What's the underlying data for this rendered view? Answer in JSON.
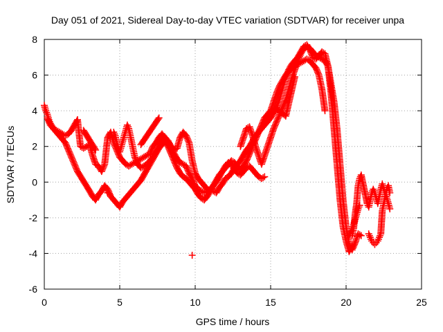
{
  "chart_data": {
    "type": "scatter",
    "title": "Day 051 of 2021, Sidereal Day-to-day VTEC variation (SDTVAR) for receiver unpa",
    "xlabel": "GPS time / hours",
    "ylabel": "SDTVAR / TECUs",
    "xlim": [
      0,
      25
    ],
    "ylim": [
      -6,
      8
    ],
    "xticks": [
      0,
      5,
      10,
      15,
      20,
      25
    ],
    "yticks": [
      -6,
      -4,
      -2,
      0,
      2,
      4,
      6,
      8
    ],
    "xtick_labels": [
      "0",
      "5",
      "10",
      "15",
      "20",
      "25"
    ],
    "ytick_labels": [
      "-6",
      "-4",
      "-2",
      "0",
      "2",
      "4",
      "6",
      "8"
    ],
    "grid": true,
    "marker": "+",
    "series": [
      {
        "name": "trace-a",
        "color": "#ff0000",
        "x": [
          0.0,
          0.1,
          0.2,
          0.3,
          0.4,
          0.6,
          0.8,
          1.0,
          1.2,
          1.4,
          1.6,
          1.8,
          2.0,
          2.2,
          2.4,
          2.6,
          2.8,
          3.0,
          3.2,
          3.4,
          3.6,
          3.8,
          4.0,
          4.2,
          4.4,
          4.6,
          4.8,
          5.0,
          5.2,
          5.4,
          5.6,
          5.8,
          6.0,
          6.2,
          6.4,
          6.6,
          6.8,
          7.0,
          7.2,
          7.4,
          7.6,
          7.8,
          8.0,
          8.2,
          8.4,
          8.6,
          8.8,
          9.0,
          9.2,
          9.4,
          9.6,
          9.8,
          10.0,
          10.2,
          10.4,
          10.6,
          10.8,
          11.0,
          11.2,
          11.4,
          11.6,
          11.8,
          12.0,
          12.2,
          12.4,
          12.6,
          12.8,
          13.0,
          13.2,
          13.4,
          13.6,
          13.8,
          14.0,
          14.2,
          14.4,
          14.6,
          14.8,
          15.0,
          15.2,
          15.4,
          15.6,
          15.8,
          16.0,
          16.2,
          16.4,
          16.6,
          16.8,
          17.0,
          17.2,
          17.4,
          17.6,
          17.8,
          18.0,
          18.2,
          18.4,
          18.6,
          18.8,
          19.0,
          19.2,
          19.4,
          19.6,
          19.8,
          20.0,
          20.2,
          20.4,
          20.6,
          20.8,
          21.0
        ],
        "y": [
          4.3,
          4.0,
          3.8,
          3.5,
          3.3,
          3.0,
          2.9,
          2.8,
          2.7,
          2.6,
          2.7,
          2.9,
          3.2,
          3.5,
          2.0,
          1.9,
          2.0,
          2.1,
          1.5,
          1.0,
          0.9,
          0.6,
          1.0,
          2.5,
          2.8,
          2.2,
          1.8,
          1.4,
          1.2,
          1.0,
          0.9,
          1.0,
          1.1,
          1.2,
          1.3,
          1.4,
          1.5,
          1.6,
          2.0,
          2.2,
          2.5,
          2.7,
          2.5,
          2.3,
          2.0,
          1.8,
          1.9,
          2.5,
          2.8,
          2.6,
          2.2,
          1.2,
          0.5,
          0.2,
          0.0,
          -0.2,
          -0.4,
          -0.5,
          -0.5,
          -0.6,
          -0.3,
          -0.1,
          0.2,
          0.3,
          0.5,
          0.8,
          1.0,
          1.2,
          1.5,
          1.8,
          2.0,
          2.3,
          2.6,
          2.8,
          3.0,
          3.2,
          3.4,
          3.6,
          3.9,
          4.2,
          4.7,
          5.3,
          5.9,
          6.3,
          6.6,
          6.8,
          7.0,
          7.3,
          7.6,
          7.7,
          7.4,
          7.0,
          6.9,
          7.1,
          7.3,
          7.2,
          6.5,
          5.5,
          4.5,
          3.0,
          1.0,
          -1.0,
          -2.5,
          -3.5,
          -3.8,
          -3.4,
          -2.9,
          -3.0
        ],
        "marker_size": 5
      },
      {
        "name": "trace-b",
        "color": "#ff0000",
        "x": [
          0.2,
          0.4,
          0.6,
          0.8,
          1.0,
          1.2,
          1.4,
          1.6,
          1.8,
          2.0,
          2.2,
          3.0,
          3.2,
          3.4,
          3.6,
          3.8,
          4.0,
          4.2,
          4.4,
          4.6,
          4.8,
          5.0,
          5.2,
          5.4,
          5.6,
          5.8,
          6.0,
          6.2,
          6.4,
          6.6,
          6.8,
          7.0,
          7.2,
          7.4,
          7.6,
          7.8,
          8.0,
          8.2,
          8.4,
          8.6,
          8.8,
          9.0,
          9.2,
          9.4,
          9.6,
          9.8,
          10.0,
          10.2,
          10.4,
          10.6,
          10.8,
          11.0,
          11.2,
          11.4,
          11.6,
          11.8,
          12.0,
          12.2,
          12.4,
          12.6,
          12.8,
          13.0,
          13.2,
          13.4,
          13.6,
          13.8,
          14.0,
          14.2,
          14.4,
          14.6,
          14.8,
          15.0,
          15.2,
          15.4,
          15.6,
          15.8,
          16.0,
          16.2,
          16.4,
          16.6,
          16.8,
          17.0,
          17.2,
          17.4,
          17.6,
          17.8,
          18.0,
          18.2,
          18.4,
          18.6
        ],
        "y": [
          3.6,
          3.2,
          3.0,
          2.8,
          2.6,
          2.4,
          2.2,
          1.8,
          1.4,
          1.0,
          0.6,
          -0.5,
          -0.8,
          -1.0,
          -0.7,
          -0.5,
          -0.2,
          -0.4,
          -0.8,
          -1.0,
          -1.2,
          -1.4,
          -1.1,
          -0.9,
          -0.7,
          -0.5,
          -0.3,
          -0.1,
          0.1,
          0.4,
          0.7,
          1.0,
          1.3,
          1.6,
          1.9,
          2.1,
          2.3,
          2.0,
          1.6,
          1.2,
          0.8,
          0.5,
          0.3,
          0.2,
          0.0,
          -0.2,
          -0.4,
          -0.7,
          -0.9,
          -1.0,
          -0.8,
          -0.5,
          -0.2,
          0.1,
          0.4,
          0.6,
          0.8,
          1.0,
          1.2,
          1.1,
          0.9,
          0.7,
          0.9,
          1.2,
          1.6,
          2.0,
          2.4,
          2.8,
          3.2,
          3.6,
          3.8,
          4.0,
          4.5,
          5.0,
          5.4,
          5.7,
          6.0,
          6.2,
          6.4,
          6.5,
          6.6,
          6.7,
          6.8,
          6.9,
          6.8,
          6.6,
          6.4,
          6.0,
          5.2,
          4.0
        ],
        "marker_size": 5
      },
      {
        "name": "trace-c",
        "color": "#ff0000",
        "x": [
          4.6,
          4.7,
          4.8,
          4.9,
          5.0,
          5.1,
          5.2,
          5.3,
          5.4,
          5.5,
          5.6,
          5.7,
          5.8,
          5.9,
          6.0,
          6.2,
          6.4,
          6.6,
          6.8,
          7.0,
          7.2,
          7.4,
          7.6,
          7.8,
          8.0,
          8.2,
          8.4,
          8.6,
          8.8,
          9.0,
          9.2,
          9.4,
          9.6,
          9.8,
          10.0,
          10.2,
          10.4,
          10.6,
          10.8,
          11.0,
          11.2,
          11.4,
          11.6,
          11.8,
          12.0,
          12.2,
          12.4,
          12.6,
          12.8,
          13.0,
          13.2,
          13.4,
          13.6,
          13.8,
          14.0,
          14.2,
          14.4,
          14.6
        ],
        "y": [
          2.8,
          2.6,
          2.2,
          1.9,
          1.7,
          2.0,
          2.3,
          2.6,
          2.9,
          3.2,
          3.0,
          2.6,
          2.2,
          1.8,
          1.4,
          1.0,
          0.8,
          0.9,
          1.0,
          1.2,
          1.4,
          1.7,
          2.0,
          2.3,
          2.5,
          2.3,
          2.0,
          1.6,
          1.3,
          1.1,
          1.0,
          0.9,
          0.5,
          0.2,
          -0.2,
          -0.4,
          -0.5,
          -0.6,
          -0.5,
          -0.4,
          -0.2,
          0.0,
          0.3,
          0.6,
          0.9,
          1.1,
          1.0,
          0.7,
          0.5,
          0.4,
          0.6,
          0.8,
          0.9,
          0.7,
          0.5,
          0.3,
          0.2,
          0.3
        ],
        "marker_size": 5
      },
      {
        "name": "trace-d",
        "color": "#ff0000",
        "x": [
          13.0,
          13.2,
          13.4,
          13.6,
          13.8,
          14.0,
          14.2,
          14.4,
          14.6,
          14.8,
          15.0,
          15.2,
          15.4,
          15.6,
          15.8,
          16.0,
          16.2,
          16.4,
          16.6,
          16.8,
          17.0,
          17.2,
          17.4,
          17.6,
          17.8,
          18.0,
          18.2,
          18.4,
          18.6,
          18.8,
          19.0,
          19.2,
          19.4,
          19.6,
          19.8,
          20.0,
          20.2,
          20.4
        ],
        "y": [
          2.0,
          2.5,
          3.0,
          3.1,
          2.6,
          2.0,
          1.5,
          1.0,
          1.5,
          2.0,
          2.5,
          3.0,
          3.4,
          3.8,
          4.2,
          4.6,
          5.2,
          5.8,
          6.3,
          6.8,
          7.2,
          7.5,
          7.6,
          7.5,
          7.3,
          7.1,
          7.0,
          6.9,
          6.8,
          6.5,
          5.0,
          3.0,
          1.0,
          -1.0,
          -2.5,
          -3.3,
          -3.9,
          -3.6
        ],
        "marker_size": 5
      },
      {
        "name": "trace-e",
        "color": "#ff0000",
        "x": [
          20.4,
          20.5,
          20.6,
          20.7,
          20.8,
          20.9,
          21.0,
          21.4,
          21.5,
          21.6,
          21.7,
          21.8,
          21.9,
          22.0,
          22.1,
          22.2,
          22.3,
          22.4,
          22.5,
          22.6,
          22.7,
          22.8,
          22.9
        ],
        "y": [
          -3.0,
          -2.6,
          -1.8,
          -1.2,
          -0.2,
          0.2,
          0.4,
          -1.2,
          -1.4,
          -1.0,
          -0.6,
          -0.4,
          -0.6,
          -0.9,
          -1.2,
          -0.8,
          -0.4,
          -0.1,
          -0.4,
          -0.7,
          -0.9,
          -1.2,
          -1.5
        ],
        "marker_size": 5
      },
      {
        "name": "trace-f",
        "color": "#ff0000",
        "x": [
          21.5,
          21.6,
          21.7,
          21.8,
          21.9,
          22.0,
          22.1,
          22.2,
          22.3,
          22.4,
          22.5,
          22.6,
          22.7,
          22.8,
          22.9,
          20.2,
          20.3,
          20.4,
          20.5,
          20.6,
          20.7,
          20.8,
          20.9,
          2.6,
          3.4,
          4.2,
          6.4,
          7.6,
          9.8,
          15.0,
          15.4,
          16.0,
          16.6
        ],
        "y": [
          -2.9,
          -3.1,
          -3.3,
          -3.4,
          -3.5,
          -3.4,
          -3.3,
          -3.1,
          -2.9,
          -1.6,
          -1.2,
          -0.8,
          -0.4,
          -0.2,
          -0.6,
          -3.0,
          -2.8,
          -2.6,
          -2.4,
          -2.1,
          -1.8,
          -1.5,
          -1.3,
          2.9,
          1.8,
          -0.6,
          2.1,
          3.6,
          -4.1,
          3.8,
          4.1,
          3.7,
          5.9
        ],
        "marker_size": 5
      }
    ]
  }
}
